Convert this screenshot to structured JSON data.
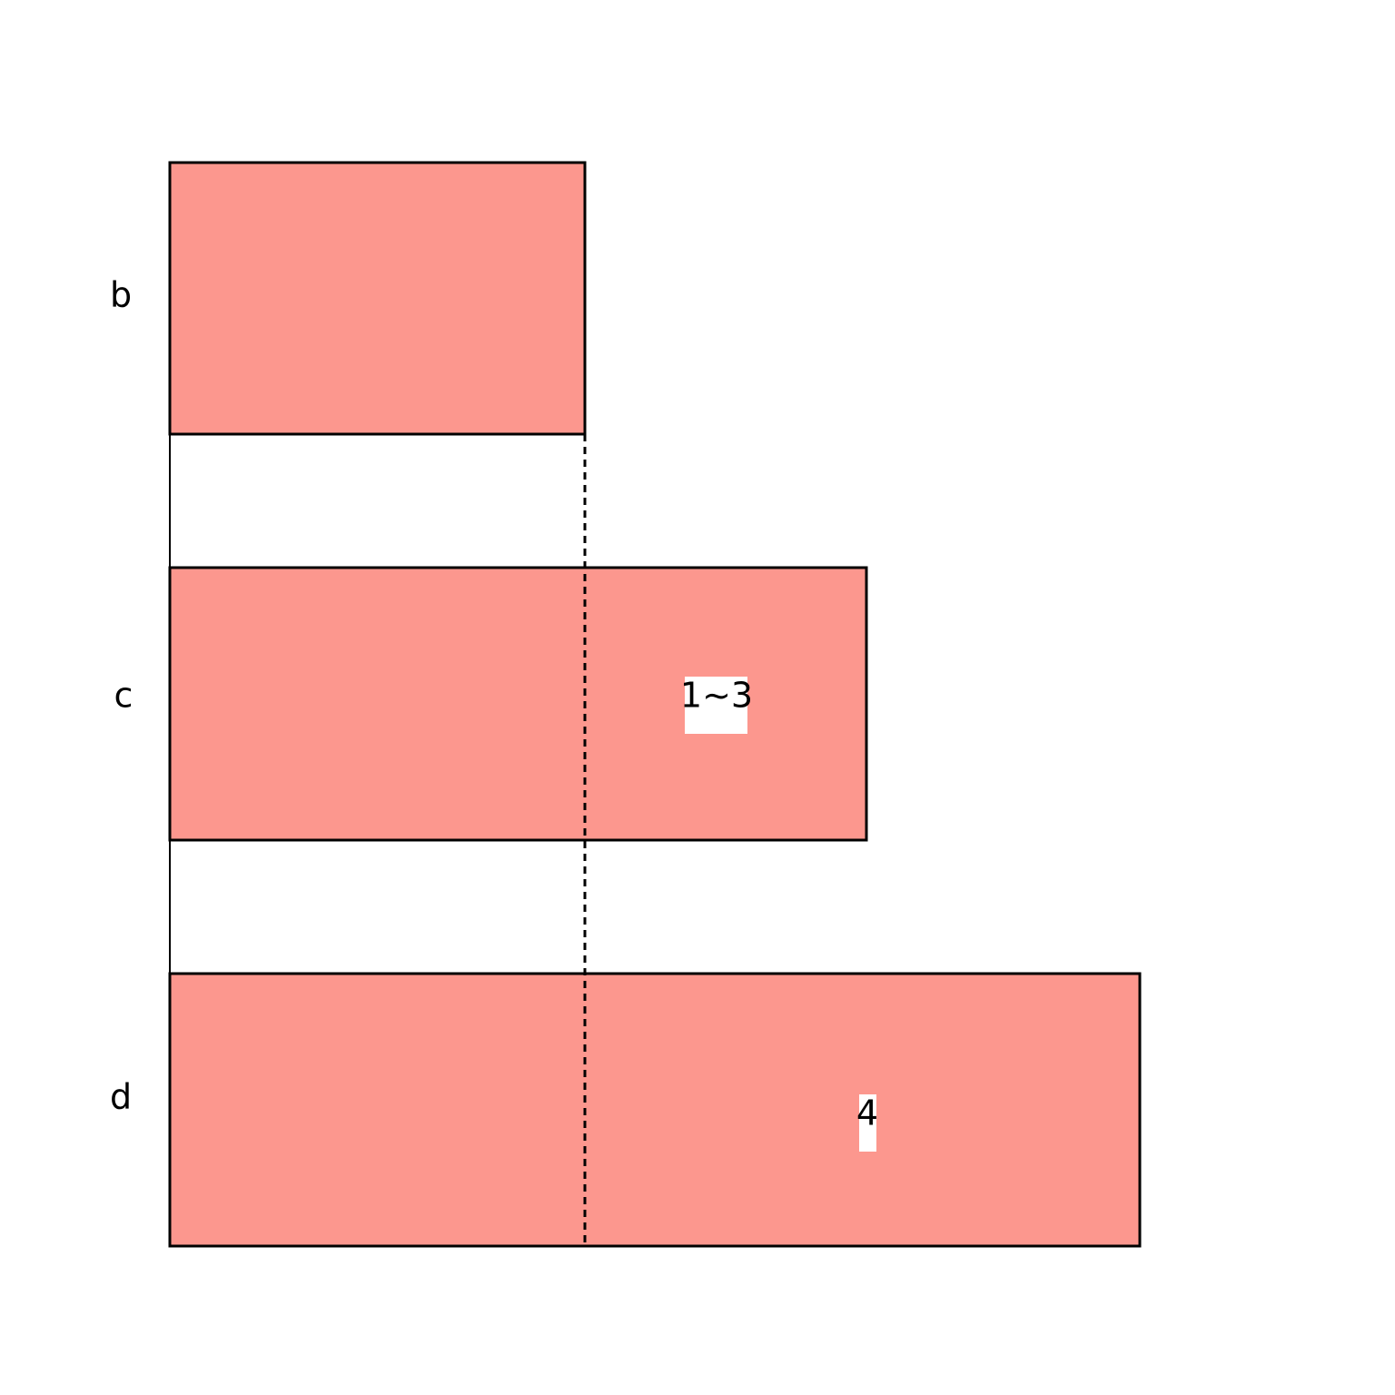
{
  "rows": [
    {
      "label": "b"
    },
    {
      "label": "c",
      "note": "1~3"
    },
    {
      "label": "d",
      "note": "4"
    }
  ]
}
